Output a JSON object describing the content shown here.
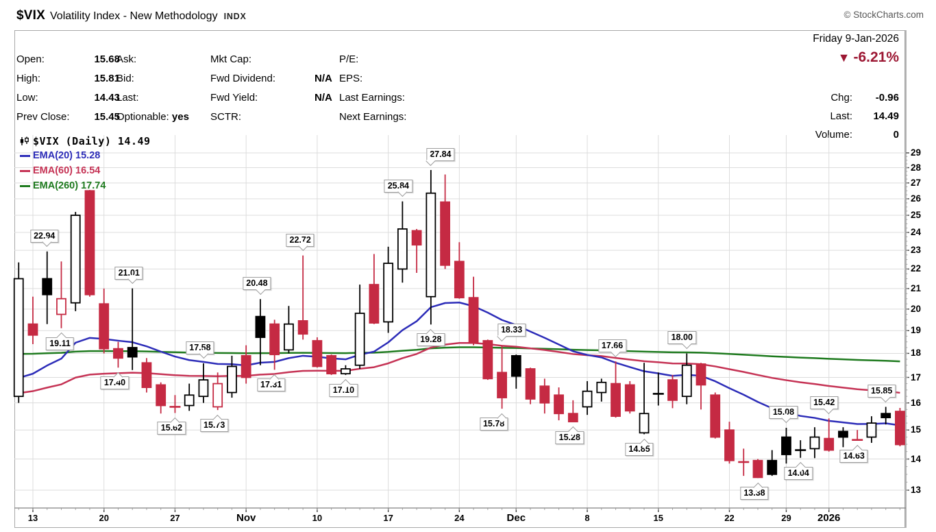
{
  "title": {
    "symbol": "$VIX",
    "name": "Volatility Index - New Methodology",
    "exchange": "INDX",
    "credit": "© StockCharts.com"
  },
  "date_line": "Friday 9-Jan-2026",
  "quote_panel": {
    "col1": [
      {
        "label": "Open:",
        "value": "15.68"
      },
      {
        "label": "High:",
        "value": "15.81"
      },
      {
        "label": "Low:",
        "value": "14.43"
      },
      {
        "label": "Prev Close:",
        "value": "15.45"
      }
    ],
    "col2": [
      {
        "label": "Ask:",
        "value": ""
      },
      {
        "label": "Bid:",
        "value": ""
      },
      {
        "label": "Last:",
        "value": ""
      },
      {
        "label": "Optionable:",
        "value": "yes"
      }
    ],
    "col3": [
      {
        "label": "Mkt Cap:",
        "value": ""
      },
      {
        "label": "Fwd Dividend:",
        "value": "N/A"
      },
      {
        "label": "Fwd Yield:",
        "value": "N/A"
      },
      {
        "label": "SCTR:",
        "value": ""
      }
    ],
    "col4": [
      {
        "label": "P/E:",
        "value": ""
      },
      {
        "label": "EPS:",
        "value": ""
      },
      {
        "label": "Last Earnings:",
        "value": ""
      },
      {
        "label": "Next Earnings:",
        "value": ""
      }
    ],
    "change": {
      "symbol": "▼",
      "pct": "-6.21%",
      "color": "#9c1733",
      "rows": [
        {
          "label": "Chg:",
          "value": "-0.96"
        },
        {
          "label": "Last:",
          "value": "14.49"
        },
        {
          "label": "Volume:",
          "value": "0"
        }
      ]
    }
  },
  "legend": {
    "series_label": "$VIX (Daily) 14.49"
  },
  "chart_data": {
    "type": "candlestick",
    "scale": "log",
    "ylim": [
      13,
      29
    ],
    "grid": true,
    "colors": {
      "down_red": "#c52a43",
      "up_hollow": "#ffffff",
      "black": "#000000",
      "grid": "#dcdcdc",
      "axis": "#808080",
      "tick": "#444444"
    },
    "x_ticks": [
      {
        "i": 1,
        "label": "13"
      },
      {
        "i": 6,
        "label": "20"
      },
      {
        "i": 11,
        "label": "27"
      },
      {
        "i": 16,
        "label": "Nov",
        "bold": true
      },
      {
        "i": 21,
        "label": "10"
      },
      {
        "i": 26,
        "label": "17"
      },
      {
        "i": 31,
        "label": "24"
      },
      {
        "i": 35,
        "label": "Dec",
        "bold": true
      },
      {
        "i": 40,
        "label": "8"
      },
      {
        "i": 45,
        "label": "15"
      },
      {
        "i": 50,
        "label": "22"
      },
      {
        "i": 54,
        "label": "29"
      },
      {
        "i": 57,
        "label": "2026",
        "bold": true
      }
    ],
    "emas": [
      {
        "label": "EMA(20)",
        "value": "15.28",
        "period": 20,
        "seed": 16.5,
        "color": "#2c2cb8"
      },
      {
        "label": "EMA(60)",
        "value": "16.54",
        "period": 60,
        "seed": 16.2,
        "color": "#c53254"
      },
      {
        "label": "EMA(260)",
        "value": "17.74",
        "period": 260,
        "seed": 17.95,
        "color": "#1e7a1e"
      }
    ],
    "candles": [
      {
        "d": "Oct 10",
        "o": 16.25,
        "h": 22.35,
        "l": 16.0,
        "c": 21.5,
        "s": "w"
      },
      {
        "d": "Oct 13",
        "o": 19.3,
        "h": 20.6,
        "l": 18.4,
        "c": 18.8,
        "s": "r"
      },
      {
        "d": "Oct 14",
        "o": 21.5,
        "h": 22.94,
        "l": 19.3,
        "c": 20.7,
        "s": "b"
      },
      {
        "d": "Oct 15",
        "o": 19.75,
        "h": 22.4,
        "l": 19.11,
        "c": 20.5,
        "s": "rh"
      },
      {
        "d": "Oct 16",
        "o": 20.3,
        "h": 25.2,
        "l": 19.9,
        "c": 25.0,
        "s": "w"
      },
      {
        "d": "Oct 17",
        "o": 26.5,
        "h": 26.55,
        "l": 20.6,
        "c": 20.7,
        "s": "r"
      },
      {
        "d": "Oct 20",
        "o": 20.25,
        "h": 21.0,
        "l": 18.0,
        "c": 18.2,
        "s": "r"
      },
      {
        "d": "Oct 21",
        "o": 18.2,
        "h": 18.5,
        "l": 17.4,
        "c": 17.8,
        "s": "r"
      },
      {
        "d": "Oct 22",
        "o": 18.25,
        "h": 21.01,
        "l": 17.3,
        "c": 17.85,
        "s": "b"
      },
      {
        "d": "Oct 23",
        "o": 17.6,
        "h": 17.8,
        "l": 16.4,
        "c": 16.6,
        "s": "r"
      },
      {
        "d": "Oct 24",
        "o": 16.7,
        "h": 16.8,
        "l": 15.6,
        "c": 15.9,
        "s": "r"
      },
      {
        "d": "Oct 27",
        "o": 15.95,
        "h": 16.3,
        "l": 15.62,
        "c": 15.85,
        "s": "r",
        "x": true
      },
      {
        "d": "Oct 28",
        "o": 15.9,
        "h": 16.75,
        "l": 15.7,
        "c": 16.3,
        "s": "w"
      },
      {
        "d": "Oct 29",
        "o": 16.25,
        "h": 17.58,
        "l": 16.0,
        "c": 16.9,
        "s": "w"
      },
      {
        "d": "Oct 30",
        "o": 15.85,
        "h": 17.2,
        "l": 15.73,
        "c": 16.75,
        "s": "rh"
      },
      {
        "d": "Oct 31",
        "o": 16.4,
        "h": 17.9,
        "l": 16.2,
        "c": 17.45,
        "s": "w"
      },
      {
        "d": "Nov 3",
        "o": 17.9,
        "h": 18.35,
        "l": 16.75,
        "c": 17.0,
        "s": "r"
      },
      {
        "d": "Nov 4",
        "o": 19.65,
        "h": 20.48,
        "l": 17.5,
        "c": 18.7,
        "s": "b"
      },
      {
        "d": "Nov 5",
        "o": 19.3,
        "h": 19.5,
        "l": 17.31,
        "c": 17.95,
        "s": "r"
      },
      {
        "d": "Nov 6",
        "o": 18.15,
        "h": 20.15,
        "l": 18.0,
        "c": 19.3,
        "s": "w"
      },
      {
        "d": "Nov 7",
        "o": 19.45,
        "h": 22.72,
        "l": 18.6,
        "c": 18.85,
        "s": "r"
      },
      {
        "d": "Nov 10",
        "o": 18.55,
        "h": 18.7,
        "l": 17.4,
        "c": 17.45,
        "s": "r"
      },
      {
        "d": "Nov 11",
        "o": 17.9,
        "h": 17.95,
        "l": 17.1,
        "c": 17.15,
        "s": "r"
      },
      {
        "d": "Nov 12",
        "o": 17.15,
        "h": 17.5,
        "l": 17.1,
        "c": 17.35,
        "s": "w"
      },
      {
        "d": "Nov 13",
        "o": 17.5,
        "h": 21.2,
        "l": 17.35,
        "c": 19.8,
        "s": "w"
      },
      {
        "d": "Nov 14",
        "o": 21.2,
        "h": 22.8,
        "l": 19.3,
        "c": 19.35,
        "s": "r"
      },
      {
        "d": "Nov 17",
        "o": 19.4,
        "h": 23.2,
        "l": 18.9,
        "c": 22.3,
        "s": "w"
      },
      {
        "d": "Nov 18",
        "o": 22.0,
        "h": 25.84,
        "l": 21.3,
        "c": 24.2,
        "s": "w"
      },
      {
        "d": "Nov 19",
        "o": 24.1,
        "h": 24.2,
        "l": 21.8,
        "c": 23.3,
        "s": "r"
      },
      {
        "d": "Nov 20",
        "o": 20.6,
        "h": 27.84,
        "l": 19.28,
        "c": 26.35,
        "s": "w"
      },
      {
        "d": "Nov 21",
        "o": 25.8,
        "h": 27.55,
        "l": 22.0,
        "c": 22.2,
        "s": "r"
      },
      {
        "d": "Nov 24",
        "o": 22.4,
        "h": 23.45,
        "l": 20.5,
        "c": 20.55,
        "s": "r"
      },
      {
        "d": "Nov 25",
        "o": 20.55,
        "h": 21.6,
        "l": 18.35,
        "c": 18.45,
        "s": "r"
      },
      {
        "d": "Nov 26",
        "o": 18.55,
        "h": 18.6,
        "l": 16.9,
        "c": 16.95,
        "s": "r"
      },
      {
        "d": "Nov 28",
        "o": 17.2,
        "h": 18.33,
        "l": 15.78,
        "c": 16.2,
        "s": "r"
      },
      {
        "d": "Dec 1",
        "o": 17.9,
        "h": 17.95,
        "l": 16.55,
        "c": 17.05,
        "s": "b"
      },
      {
        "d": "Dec 2",
        "o": 17.35,
        "h": 17.4,
        "l": 15.95,
        "c": 16.15,
        "s": "r"
      },
      {
        "d": "Dec 3",
        "o": 16.65,
        "h": 16.95,
        "l": 15.6,
        "c": 16.0,
        "s": "r"
      },
      {
        "d": "Dec 4",
        "o": 16.3,
        "h": 16.6,
        "l": 15.35,
        "c": 15.6,
        "s": "r"
      },
      {
        "d": "Dec 5",
        "o": 15.6,
        "h": 16.1,
        "l": 15.28,
        "c": 15.3,
        "s": "r"
      },
      {
        "d": "Dec 8",
        "o": 15.85,
        "h": 16.85,
        "l": 15.55,
        "c": 16.45,
        "s": "w"
      },
      {
        "d": "Dec 9",
        "o": 16.4,
        "h": 16.95,
        "l": 16.05,
        "c": 16.8,
        "s": "w"
      },
      {
        "d": "Dec 10",
        "o": 16.75,
        "h": 17.66,
        "l": 15.45,
        "c": 15.5,
        "s": "r"
      },
      {
        "d": "Dec 11",
        "o": 16.7,
        "h": 16.85,
        "l": 15.6,
        "c": 15.7,
        "s": "r"
      },
      {
        "d": "Dec 12",
        "o": 14.9,
        "h": 17.6,
        "l": 14.85,
        "c": 15.6,
        "s": "w"
      },
      {
        "d": "Dec 15",
        "o": 16.45,
        "h": 17.2,
        "l": 15.9,
        "c": 16.35,
        "s": "b",
        "x": true
      },
      {
        "d": "Dec 16",
        "o": 16.9,
        "h": 17.1,
        "l": 15.8,
        "c": 16.1,
        "s": "r"
      },
      {
        "d": "Dec 17",
        "o": 16.25,
        "h": 18.0,
        "l": 15.95,
        "c": 17.5,
        "s": "w"
      },
      {
        "d": "Dec 18",
        "o": 17.55,
        "h": 17.6,
        "l": 15.75,
        "c": 16.7,
        "s": "r"
      },
      {
        "d": "Dec 19",
        "o": 16.3,
        "h": 16.4,
        "l": 14.7,
        "c": 14.75,
        "s": "r"
      },
      {
        "d": "Dec 22",
        "o": 15.0,
        "h": 15.3,
        "l": 13.85,
        "c": 13.95,
        "s": "r"
      },
      {
        "d": "Dec 23",
        "o": 13.95,
        "h": 14.35,
        "l": 13.45,
        "c": 13.9,
        "s": "r",
        "x": true
      },
      {
        "d": "Dec 24",
        "o": 13.95,
        "h": 14.0,
        "l": 13.38,
        "c": 13.4,
        "s": "r"
      },
      {
        "d": "Dec 26",
        "o": 13.95,
        "h": 14.3,
        "l": 13.45,
        "c": 13.5,
        "s": "b"
      },
      {
        "d": "Dec 29",
        "o": 14.75,
        "h": 15.08,
        "l": 13.85,
        "c": 14.15,
        "s": "b"
      },
      {
        "d": "Dec 30",
        "o": 14.35,
        "h": 14.64,
        "l": 14.04,
        "c": 14.3,
        "s": "b",
        "x": true
      },
      {
        "d": "Dec 31",
        "o": 14.35,
        "h": 15.1,
        "l": 14.03,
        "c": 14.75,
        "s": "w"
      },
      {
        "d": "Jan 2",
        "o": 14.7,
        "h": 15.42,
        "l": 14.25,
        "c": 14.3,
        "s": "r"
      },
      {
        "d": "Jan 5",
        "o": 14.95,
        "h": 15.1,
        "l": 14.4,
        "c": 14.75,
        "s": "b"
      },
      {
        "d": "Jan 6",
        "o": 14.72,
        "h": 15.0,
        "l": 14.63,
        "c": 14.65,
        "s": "r",
        "x": true
      },
      {
        "d": "Jan 7",
        "o": 14.75,
        "h": 15.5,
        "l": 14.55,
        "c": 15.25,
        "s": "w"
      },
      {
        "d": "Jan 8",
        "o": 15.6,
        "h": 15.85,
        "l": 15.2,
        "c": 15.45,
        "s": "b"
      },
      {
        "d": "Jan 9",
        "o": 15.68,
        "h": 15.81,
        "l": 14.43,
        "c": 14.49,
        "s": "r"
      }
    ],
    "annotations": [
      {
        "i": 2,
        "text": "22.94",
        "side": "above",
        "dx": -4
      },
      {
        "i": 3,
        "text": "19.11",
        "side": "below",
        "dx": -2
      },
      {
        "i": 7,
        "text": "17.40",
        "side": "below",
        "dx": -5
      },
      {
        "i": 8,
        "text": "21.01",
        "side": "above",
        "dx": -5
      },
      {
        "i": 11,
        "text": "15.62",
        "side": "below",
        "dx": -5
      },
      {
        "i": 13,
        "text": "17.58",
        "side": "above",
        "dx": -5
      },
      {
        "i": 14,
        "text": "15.73",
        "side": "below",
        "dx": -5
      },
      {
        "i": 17,
        "text": "20.48",
        "side": "above",
        "dx": -5
      },
      {
        "i": 18,
        "text": "17.31",
        "side": "below",
        "dx": -5
      },
      {
        "i": 20,
        "text": "22.72",
        "side": "above",
        "dx": -4
      },
      {
        "i": 23,
        "text": "17.10",
        "side": "below",
        "dx": -3
      },
      {
        "i": 27,
        "text": "25.84",
        "side": "above",
        "dx": -6
      },
      {
        "i": 29,
        "text": "27.84",
        "side": "above",
        "dx": 14
      },
      {
        "i": 29,
        "text": "19.28",
        "side": "below",
        "dx": 0
      },
      {
        "i": 34,
        "text": "18.33",
        "side": "above",
        "dx": 14
      },
      {
        "i": 34,
        "text": "15.78",
        "side": "below",
        "dx": -12
      },
      {
        "i": 39,
        "text": "15.28",
        "side": "below",
        "dx": -5
      },
      {
        "i": 42,
        "text": "17.66",
        "side": "above",
        "dx": -5
      },
      {
        "i": 44,
        "text": "14.85",
        "side": "below",
        "dx": -7
      },
      {
        "i": 47,
        "text": "18.00",
        "side": "above",
        "dx": -7
      },
      {
        "i": 52,
        "text": "13.38",
        "side": "below",
        "dx": -5
      },
      {
        "i": 54,
        "text": "15.08",
        "side": "above",
        "dx": -4
      },
      {
        "i": 55,
        "text": "14.04",
        "side": "below",
        "dx": -3
      },
      {
        "i": 57,
        "text": "15.42",
        "side": "above",
        "dx": -7
      },
      {
        "i": 59,
        "text": "14.63",
        "side": "below",
        "dx": -5
      },
      {
        "i": 61,
        "text": "15.85",
        "side": "above",
        "dx": -6
      }
    ]
  }
}
